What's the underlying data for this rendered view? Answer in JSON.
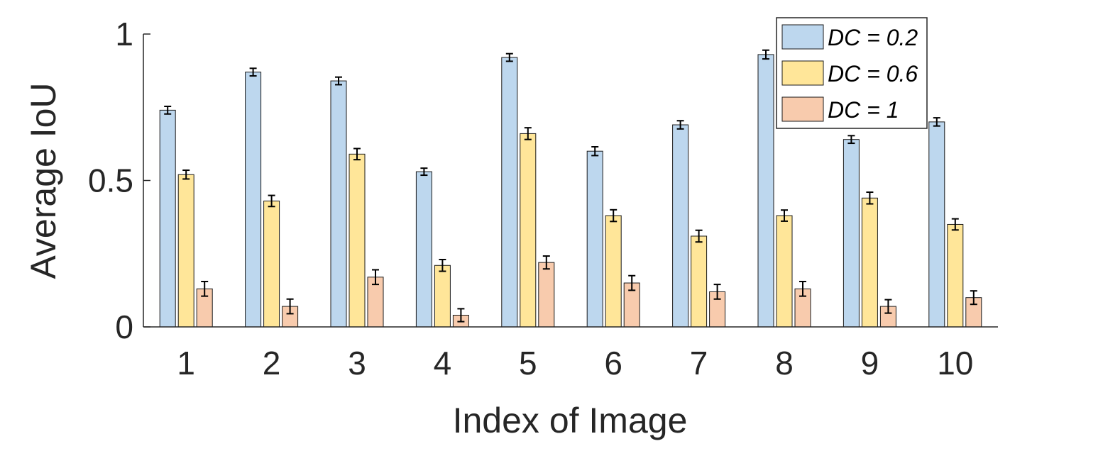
{
  "chart_data": {
    "type": "bar",
    "xlabel": "Index of Image",
    "ylabel": "Average IoU",
    "ylim": [
      0,
      1
    ],
    "yticks": [
      "0",
      "0.5",
      "1"
    ],
    "categories": [
      "1",
      "2",
      "3",
      "4",
      "5",
      "6",
      "7",
      "8",
      "9",
      "10"
    ],
    "grid": false,
    "legend_position": "top-right",
    "series": [
      {
        "name": "DC = 0.2",
        "color": "#bdd7ee",
        "values": [
          0.74,
          0.87,
          0.84,
          0.53,
          0.92,
          0.6,
          0.69,
          0.93,
          0.64,
          0.7
        ],
        "errors": [
          0.013,
          0.013,
          0.013,
          0.012,
          0.013,
          0.015,
          0.014,
          0.015,
          0.013,
          0.014
        ]
      },
      {
        "name": "DC = 0.6",
        "color": "#ffe699",
        "values": [
          0.52,
          0.43,
          0.59,
          0.21,
          0.66,
          0.38,
          0.31,
          0.38,
          0.44,
          0.35
        ],
        "errors": [
          0.015,
          0.019,
          0.019,
          0.02,
          0.02,
          0.02,
          0.02,
          0.019,
          0.02,
          0.019
        ]
      },
      {
        "name": "DC = 1",
        "color": "#f8cbad",
        "values": [
          0.13,
          0.07,
          0.17,
          0.04,
          0.22,
          0.15,
          0.12,
          0.13,
          0.07,
          0.1
        ],
        "errors": [
          0.025,
          0.025,
          0.025,
          0.022,
          0.022,
          0.025,
          0.025,
          0.025,
          0.023,
          0.023
        ]
      }
    ]
  }
}
